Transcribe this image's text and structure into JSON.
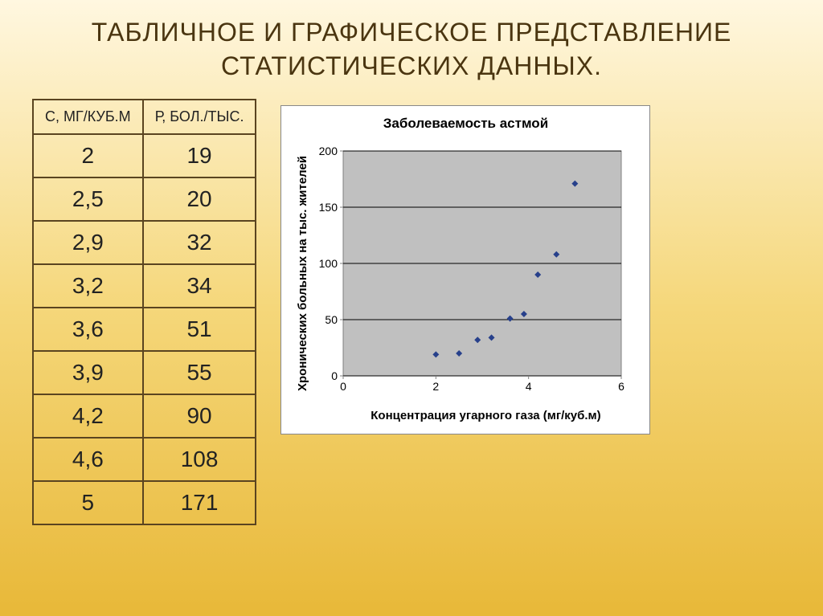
{
  "slide": {
    "title": "ТАБЛИЧНОЕ И ГРАФИЧЕСКОЕ ПРЕДСТАВЛЕНИЕ СТАТИСТИЧЕСКИХ ДАННЫХ.",
    "background_gradient": [
      "#fff7e0",
      "#f5d77a",
      "#e8b838"
    ]
  },
  "table": {
    "columns": [
      "С, МГ/КУБ.М",
      "Р, БОЛ./ТЫС."
    ],
    "rows": [
      [
        "2",
        "19"
      ],
      [
        "2,5",
        "20"
      ],
      [
        "2,9",
        "32"
      ],
      [
        "3,2",
        "34"
      ],
      [
        "3,6",
        "51"
      ],
      [
        "3,9",
        "55"
      ],
      [
        "4,2",
        "90"
      ],
      [
        "4,6",
        "108"
      ],
      [
        "5",
        "171"
      ]
    ],
    "border_color": "#5a4420",
    "header_fontsize": 18,
    "cell_fontsize": 28
  },
  "chart": {
    "type": "scatter",
    "title": "Заболеваемость астмой",
    "xlabel": "Концентрация угарного газа (мг/куб.м)",
    "ylabel": "Хронических больных на тыс. жителей",
    "xlim": [
      0,
      6
    ],
    "ylim": [
      0,
      200
    ],
    "xtick_step": 2,
    "ytick_step": 50,
    "xticks": [
      0,
      2,
      4,
      6
    ],
    "yticks": [
      0,
      50,
      100,
      150,
      200
    ],
    "points": [
      {
        "x": 2.0,
        "y": 19
      },
      {
        "x": 2.5,
        "y": 20
      },
      {
        "x": 2.9,
        "y": 32
      },
      {
        "x": 3.2,
        "y": 34
      },
      {
        "x": 3.6,
        "y": 51
      },
      {
        "x": 3.9,
        "y": 55
      },
      {
        "x": 4.2,
        "y": 90
      },
      {
        "x": 4.6,
        "y": 108
      },
      {
        "x": 5.0,
        "y": 171
      }
    ],
    "marker_color": "#27408b",
    "marker_shape": "diamond",
    "marker_size": 8,
    "plot_bg": "#c0c0c0",
    "grid_color": "#000000",
    "axis_color": "#808080",
    "title_fontsize": 17,
    "label_fontsize": 15,
    "tick_fontsize": 14,
    "outer_bg": "#ffffff",
    "outer_border": "#888888"
  }
}
